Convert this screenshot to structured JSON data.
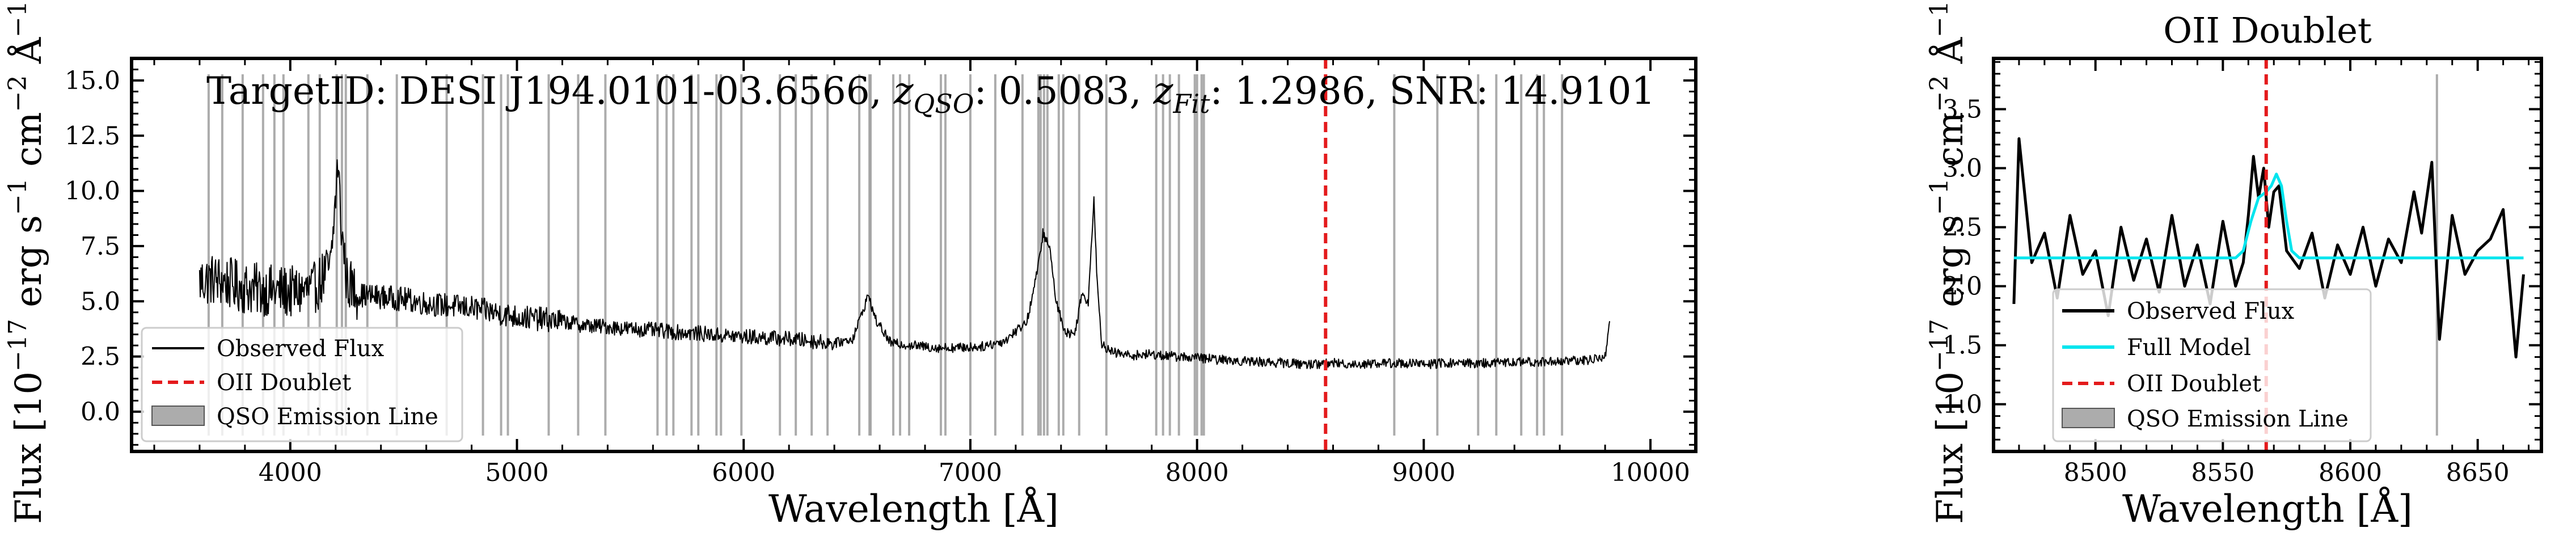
{
  "chart_data": [
    {
      "type": "line",
      "title": "TargetID: DESI J194.0101-03.6566, z_QSO: 0.5083, z_Fit: 1.2986, SNR: 14.9101",
      "title_parts": {
        "prefix": "TargetID: DESI J194.0101-03.6566, ",
        "zqso_sub": "QSO",
        "zqso_val": ": 0.5083, ",
        "zfit_sub": "Fit",
        "zfit_val": ": 1.2986, SNR: 14.9101"
      },
      "xlabel": "Wavelength [Å]",
      "ylabel": "Flux [10−17 erg s−1 cm−2 Å−1]",
      "xlim": [
        3300,
        10200
      ],
      "ylim": [
        -1.8,
        16.0
      ],
      "xticks": [
        4000,
        5000,
        6000,
        7000,
        8000,
        9000,
        10000
      ],
      "yticks": [
        0.0,
        2.5,
        5.0,
        7.5,
        10.0,
        12.5,
        15.0
      ],
      "legend_position": "lower-left",
      "legend": [
        "Observed Flux",
        "OII Doublet",
        "QSO Emission Line"
      ],
      "oii_line_x": 8567,
      "colors": {
        "flux": "#000000",
        "oii": "#e41a1c",
        "qso": "#9e9e9e"
      },
      "series": [
        {
          "name": "Observed Flux",
          "x": [
            3600,
            3650,
            3700,
            3800,
            3900,
            4000,
            4100,
            4180,
            4210,
            4225,
            4250,
            4300,
            4400,
            4500,
            4600,
            4700,
            4800,
            4900,
            5000,
            5100,
            5200,
            5300,
            5400,
            5500,
            5600,
            5700,
            5800,
            5900,
            6000,
            6100,
            6200,
            6300,
            6400,
            6480,
            6520,
            6550,
            6580,
            6650,
            6750,
            6850,
            6950,
            7050,
            7150,
            7250,
            7300,
            7320,
            7350,
            7380,
            7420,
            7460,
            7490,
            7520,
            7545,
            7560,
            7580,
            7620,
            7700,
            7800,
            7900,
            8000,
            8100,
            8200,
            8300,
            8400,
            8500,
            8600,
            8700,
            8800,
            8900,
            9000,
            9100,
            9200,
            9300,
            9400,
            9500,
            9600,
            9700,
            9800,
            9820
          ],
          "y": [
            5.9,
            6.0,
            5.9,
            5.6,
            5.5,
            5.4,
            5.5,
            6.6,
            11.3,
            8.4,
            5.9,
            5.3,
            5.2,
            5.1,
            4.9,
            4.8,
            4.7,
            4.5,
            4.3,
            4.2,
            4.1,
            3.9,
            3.85,
            3.75,
            3.7,
            3.6,
            3.55,
            3.45,
            3.4,
            3.35,
            3.3,
            3.2,
            3.1,
            3.3,
            4.4,
            5.3,
            4.2,
            3.1,
            3.0,
            2.9,
            2.9,
            2.95,
            3.2,
            4.1,
            6.6,
            8.1,
            7.4,
            4.9,
            3.6,
            3.5,
            5.3,
            5.0,
            9.7,
            5.7,
            3.1,
            2.7,
            2.55,
            2.6,
            2.5,
            2.45,
            2.35,
            2.3,
            2.25,
            2.2,
            2.15,
            2.2,
            2.15,
            2.2,
            2.2,
            2.15,
            2.2,
            2.2,
            2.2,
            2.25,
            2.25,
            2.3,
            2.3,
            2.5,
            4.1
          ]
        }
      ],
      "qso_emission_lines_x": [
        3640,
        3700,
        3790,
        3880,
        3930,
        3970,
        4080,
        4130,
        4205,
        4228,
        4245,
        4340,
        4470,
        4690,
        4850,
        4930,
        4960,
        5140,
        5270,
        5390,
        5620,
        5660,
        5690,
        5770,
        5800,
        5880,
        5900,
        5990,
        6160,
        6230,
        6300,
        6370,
        6510,
        6555,
        6560,
        6660,
        6690,
        6730,
        6870,
        6890,
        7000,
        7110,
        7230,
        7300,
        7310,
        7325,
        7340,
        7390,
        7410,
        7480,
        7600,
        7820,
        7850,
        7880,
        7920,
        7990,
        8000,
        8020,
        8030,
        8870,
        9060,
        9240,
        9320,
        9430,
        9500,
        9530,
        9610
      ]
    },
    {
      "type": "line",
      "title": "OII Doublet",
      "xlabel": "Wavelength [Å]",
      "ylabel": "Flux [10−17 erg s−1 cm−2 Å−1]",
      "xlim": [
        8460,
        8675
      ],
      "ylim": [
        0.6,
        3.93
      ],
      "xticks": [
        8500,
        8550,
        8600,
        8650
      ],
      "yticks": [
        1.0,
        1.5,
        2.0,
        2.5,
        3.0,
        3.5
      ],
      "legend_position": "lower-left",
      "legend": [
        "Observed Flux",
        "Full Model",
        "OII Doublet",
        "QSO Emission Line"
      ],
      "oii_line_x": 8567,
      "qso_emission_line_x": 8634,
      "colors": {
        "flux": "#000000",
        "model": "#00e5ee",
        "oii": "#e41a1c",
        "qso": "#9e9e9e"
      },
      "series": [
        {
          "name": "Observed Flux",
          "x": [
            8468,
            8470,
            8475,
            8480,
            8485,
            8490,
            8495,
            8500,
            8505,
            8510,
            8515,
            8520,
            8525,
            8530,
            8535,
            8540,
            8545,
            8550,
            8555,
            8558,
            8560,
            8562,
            8564,
            8566,
            8568,
            8570,
            8572,
            8575,
            8580,
            8585,
            8590,
            8595,
            8600,
            8605,
            8610,
            8615,
            8620,
            8625,
            8628,
            8632,
            8635,
            8640,
            8645,
            8650,
            8655,
            8660,
            8665,
            8668
          ],
          "y": [
            1.85,
            3.25,
            2.2,
            2.45,
            1.9,
            2.6,
            2.1,
            2.3,
            1.75,
            2.5,
            2.05,
            2.4,
            1.95,
            2.6,
            2.0,
            2.35,
            1.85,
            2.55,
            2.0,
            2.2,
            2.6,
            3.1,
            2.75,
            3.0,
            2.5,
            2.8,
            2.85,
            2.3,
            2.15,
            2.45,
            1.9,
            2.35,
            2.1,
            2.5,
            2.0,
            2.4,
            2.2,
            2.8,
            2.45,
            3.05,
            1.55,
            2.6,
            2.1,
            2.3,
            2.4,
            2.65,
            1.4,
            2.1
          ]
        },
        {
          "name": "Full Model",
          "x": [
            8468,
            8555,
            8558,
            8561,
            8564,
            8567,
            8569,
            8571,
            8573,
            8575,
            8577,
            8580,
            8668
          ],
          "y": [
            2.24,
            2.24,
            2.3,
            2.55,
            2.75,
            2.8,
            2.85,
            2.95,
            2.85,
            2.55,
            2.3,
            2.24,
            2.24
          ]
        }
      ]
    }
  ]
}
